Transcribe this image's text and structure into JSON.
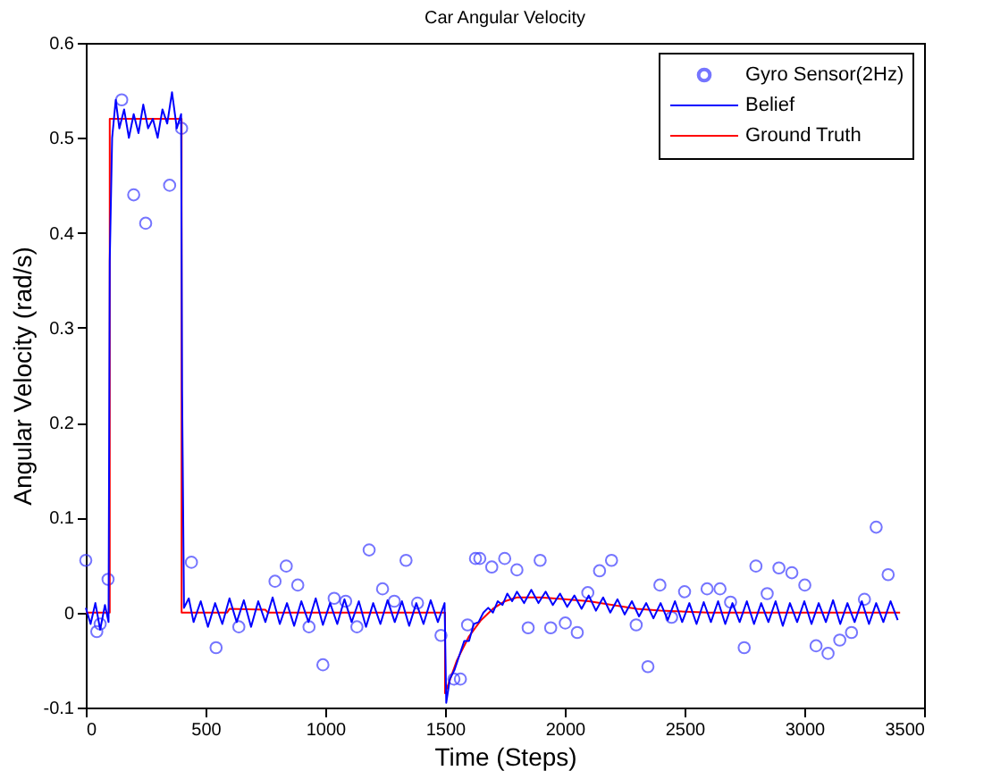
{
  "chart_data": {
    "type": "line",
    "title": "Car Angular Velocity",
    "xlabel": "Time  (Steps)",
    "ylabel": "Angular Velocity (rad/s)",
    "xlim": [
      0,
      3500
    ],
    "xticks": [
      0,
      500,
      1000,
      1500,
      2000,
      2500,
      3000,
      3500
    ],
    "ylim": [
      -0.1,
      0.6
    ],
    "yticks": [
      -0.1,
      0,
      0.1,
      0.2,
      0.3,
      0.4,
      0.5,
      0.6
    ],
    "grid": false,
    "legend": "top right",
    "line_style": "solid",
    "series": [
      {
        "name": "Gyro Sensor(2Hz)",
        "type": "scatter",
        "marker": "circle",
        "color": "#3b3bff",
        "x": [
          0,
          46,
          60,
          93,
          150,
          200,
          250,
          350,
          400,
          441,
          544,
          639,
          790,
          837,
          885,
          932,
          990,
          1037,
          1085,
          1132,
          1183,
          1239,
          1288,
          1337,
          1385,
          1483,
          1537,
          1564,
          1594,
          1627,
          1645,
          1695,
          1749,
          1800,
          1847,
          1897,
          1941,
          2002,
          2052,
          2096,
          2145,
          2195,
          2298,
          2347,
          2397,
          2446,
          2500,
          2594,
          2648,
          2692,
          2749,
          2798,
          2845,
          2894,
          2948,
          3002,
          3049,
          3099,
          3148,
          3197,
          3251,
          3300,
          3350
        ],
        "values": [
          0.055,
          -0.02,
          -0.012,
          0.035,
          0.54,
          0.44,
          0.41,
          0.45,
          0.51,
          0.053,
          -0.037,
          -0.015,
          0.033,
          0.049,
          0.029,
          -0.015,
          -0.055,
          0.015,
          0.012,
          -0.015,
          0.066,
          0.025,
          0.012,
          0.055,
          0.01,
          -0.024,
          -0.07,
          -0.07,
          -0.013,
          0.057,
          0.057,
          0.048,
          0.057,
          0.045,
          -0.016,
          0.055,
          -0.016,
          -0.011,
          -0.021,
          0.021,
          0.044,
          0.055,
          -0.013,
          -0.057,
          0.029,
          -0.005,
          0.022,
          0.025,
          0.025,
          0.011,
          -0.037,
          0.049,
          0.02,
          0.047,
          0.042,
          0.029,
          -0.035,
          -0.043,
          -0.029,
          -0.021,
          0.014,
          0.09,
          0.04
        ]
      },
      {
        "name": "Belief",
        "color": "#0000ff",
        "x": [
          0,
          20,
          40,
          60,
          80,
          95,
          100,
          110,
          125,
          140,
          160,
          180,
          200,
          220,
          240,
          260,
          280,
          300,
          320,
          340,
          360,
          380,
          398,
          402,
          410,
          430,
          450,
          480,
          510,
          540,
          570,
          600,
          630,
          660,
          690,
          720,
          750,
          780,
          810,
          840,
          870,
          900,
          930,
          960,
          990,
          1020,
          1050,
          1080,
          1110,
          1140,
          1170,
          1200,
          1230,
          1260,
          1290,
          1320,
          1350,
          1380,
          1410,
          1440,
          1470,
          1498,
          1505,
          1520,
          1540,
          1560,
          1580,
          1600,
          1620,
          1640,
          1660,
          1680,
          1700,
          1720,
          1740,
          1760,
          1780,
          1800,
          1830,
          1860,
          1890,
          1920,
          1950,
          1980,
          2010,
          2040,
          2070,
          2100,
          2130,
          2160,
          2190,
          2220,
          2250,
          2280,
          2310,
          2340,
          2370,
          2400,
          2430,
          2460,
          2490,
          2520,
          2550,
          2580,
          2610,
          2640,
          2670,
          2700,
          2730,
          2760,
          2790,
          2820,
          2850,
          2880,
          2910,
          2940,
          2970,
          3000,
          3030,
          3060,
          3090,
          3120,
          3150,
          3180,
          3210,
          3240,
          3270,
          3300,
          3330,
          3360,
          3390
        ],
        "values": [
          0.005,
          -0.012,
          0.01,
          -0.018,
          0.008,
          -0.01,
          0.37,
          0.5,
          0.54,
          0.51,
          0.53,
          0.5,
          0.525,
          0.505,
          0.535,
          0.51,
          0.52,
          0.5,
          0.53,
          0.515,
          0.548,
          0.51,
          0.525,
          0.235,
          0.005,
          0.015,
          -0.01,
          0.012,
          -0.015,
          0.01,
          -0.012,
          0.015,
          -0.01,
          0.013,
          -0.015,
          0.012,
          -0.01,
          0.016,
          -0.012,
          0.01,
          -0.014,
          0.012,
          -0.01,
          0.015,
          -0.013,
          0.01,
          -0.012,
          0.014,
          -0.01,
          0.012,
          -0.015,
          0.01,
          -0.012,
          0.013,
          -0.01,
          0.012,
          -0.014,
          0.01,
          -0.012,
          0.013,
          -0.01,
          0.01,
          -0.095,
          -0.07,
          -0.06,
          -0.045,
          -0.03,
          -0.03,
          -0.012,
          -0.01,
          0.0,
          0.005,
          0.0,
          0.012,
          0.008,
          0.02,
          0.012,
          0.022,
          0.01,
          0.024,
          0.01,
          0.022,
          0.008,
          0.02,
          0.006,
          0.018,
          0.004,
          0.018,
          0.002,
          0.016,
          0.0,
          0.014,
          -0.002,
          0.012,
          -0.004,
          0.01,
          -0.006,
          0.01,
          -0.008,
          0.012,
          -0.01,
          0.01,
          -0.012,
          0.011,
          -0.01,
          0.012,
          -0.012,
          0.01,
          -0.01,
          0.012,
          -0.012,
          0.01,
          -0.01,
          0.012,
          -0.014,
          0.01,
          -0.01,
          0.012,
          -0.012,
          0.01,
          -0.01,
          0.013,
          -0.012,
          0.01,
          -0.01,
          0.012,
          -0.012,
          0.01,
          -0.01,
          0.012,
          -0.008
        ]
      },
      {
        "name": "Ground Truth",
        "type": "line",
        "color": "#ff0000",
        "x": [
          0,
          100,
          100,
          400,
          400,
          590,
          600,
          750,
          760,
          1500,
          1500,
          1550,
          1600,
          1650,
          1700,
          1750,
          1800,
          1900,
          2000,
          2100,
          2200,
          2300,
          2400,
          2600,
          3400
        ],
        "values": [
          0,
          0,
          0.52,
          0.52,
          0,
          0,
          0.004,
          0.003,
          0,
          0,
          -0.085,
          -0.05,
          -0.025,
          -0.008,
          0.004,
          0.012,
          0.016,
          0.016,
          0.014,
          0.012,
          0.008,
          0.004,
          0.002,
          0,
          0
        ]
      }
    ]
  }
}
